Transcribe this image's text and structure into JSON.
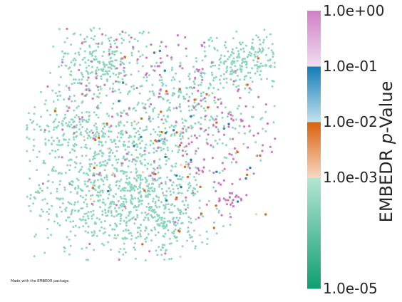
{
  "chart_data": {
    "type": "scatter",
    "title": "",
    "xlabel": "",
    "ylabel": "",
    "grid": false,
    "axes_visible": false,
    "footnote": "Made with the EMBEDR package.",
    "colorbar": {
      "label_main": "EMBEDR ",
      "label_italic": "p",
      "label_tail": "-Value",
      "scale": "log",
      "range": [
        1e-05,
        1
      ],
      "ticks": [
        {
          "value": 1,
          "label": "1.0e+00"
        },
        {
          "value": 0.1,
          "label": "1.0e-01"
        },
        {
          "value": 0.01,
          "label": "1.0e-02"
        },
        {
          "value": 0.001,
          "label": "1.0e-03"
        },
        {
          "value": 1e-05,
          "label": "1.0e-05"
        }
      ],
      "segments": [
        {
          "from": 1e-05,
          "to": 0.001,
          "color_low": "#0e9f73",
          "color_high": "#b5e5d3"
        },
        {
          "from": 0.001,
          "to": 0.01,
          "color_low": "#f6d7c2",
          "color_high": "#da6008"
        },
        {
          "from": 0.01,
          "to": 0.1,
          "color_low": "#c2e2ef",
          "color_high": "#127bb7"
        },
        {
          "from": 0.1,
          "to": 1,
          "color_low": "#f2dcef",
          "color_high": "#cf7fc7"
        }
      ]
    },
    "point_colors": {
      "teal": "#8fd6bd",
      "magenta": "#cc79c0",
      "orange": "#d86a1a",
      "blue": "#2a7fb5",
      "peach": "#f2c8aa",
      "lightblue": "#9ccde6"
    },
    "xlim": [
      0,
      100
    ],
    "ylim": [
      0,
      100
    ],
    "seed": 7,
    "teal_clusters": [
      {
        "x": 30,
        "y": 82,
        "sx": 9,
        "sy": 8,
        "n": 260
      },
      {
        "x": 88,
        "y": 84,
        "sx": 10,
        "sy": 5,
        "n": 230
      },
      {
        "x": 20,
        "y": 55,
        "sx": 18,
        "sy": 7,
        "n": 280
      },
      {
        "x": 72,
        "y": 60,
        "sx": 15,
        "sy": 9,
        "n": 140
      },
      {
        "x": 28,
        "y": 28,
        "sx": 15,
        "sy": 12,
        "n": 440
      },
      {
        "x": 50,
        "y": 24,
        "sx": 12,
        "sy": 10,
        "n": 380
      },
      {
        "x": 48,
        "y": 48,
        "sx": 12,
        "sy": 12,
        "n": 200
      },
      {
        "x": 60,
        "y": 72,
        "sx": 8,
        "sy": 5,
        "n": 80
      }
    ],
    "magenta_clusters": [
      {
        "x": 50,
        "y": 82,
        "sx": 16,
        "sy": 11,
        "n": 75
      },
      {
        "x": 75,
        "y": 52,
        "sx": 13,
        "sy": 14,
        "n": 95
      },
      {
        "x": 48,
        "y": 38,
        "sx": 20,
        "sy": 16,
        "n": 55
      },
      {
        "x": 82,
        "y": 28,
        "sx": 3,
        "sy": 3,
        "n": 18
      },
      {
        "x": 20,
        "y": 65,
        "sx": 16,
        "sy": 12,
        "n": 30
      }
    ],
    "orange_cluster": {
      "x": 58,
      "y": 44,
      "sx": 18,
      "sy": 20,
      "n": 40
    },
    "blue_cluster": {
      "x": 62,
      "y": 50,
      "sx": 20,
      "sy": 22,
      "n": 25
    }
  }
}
